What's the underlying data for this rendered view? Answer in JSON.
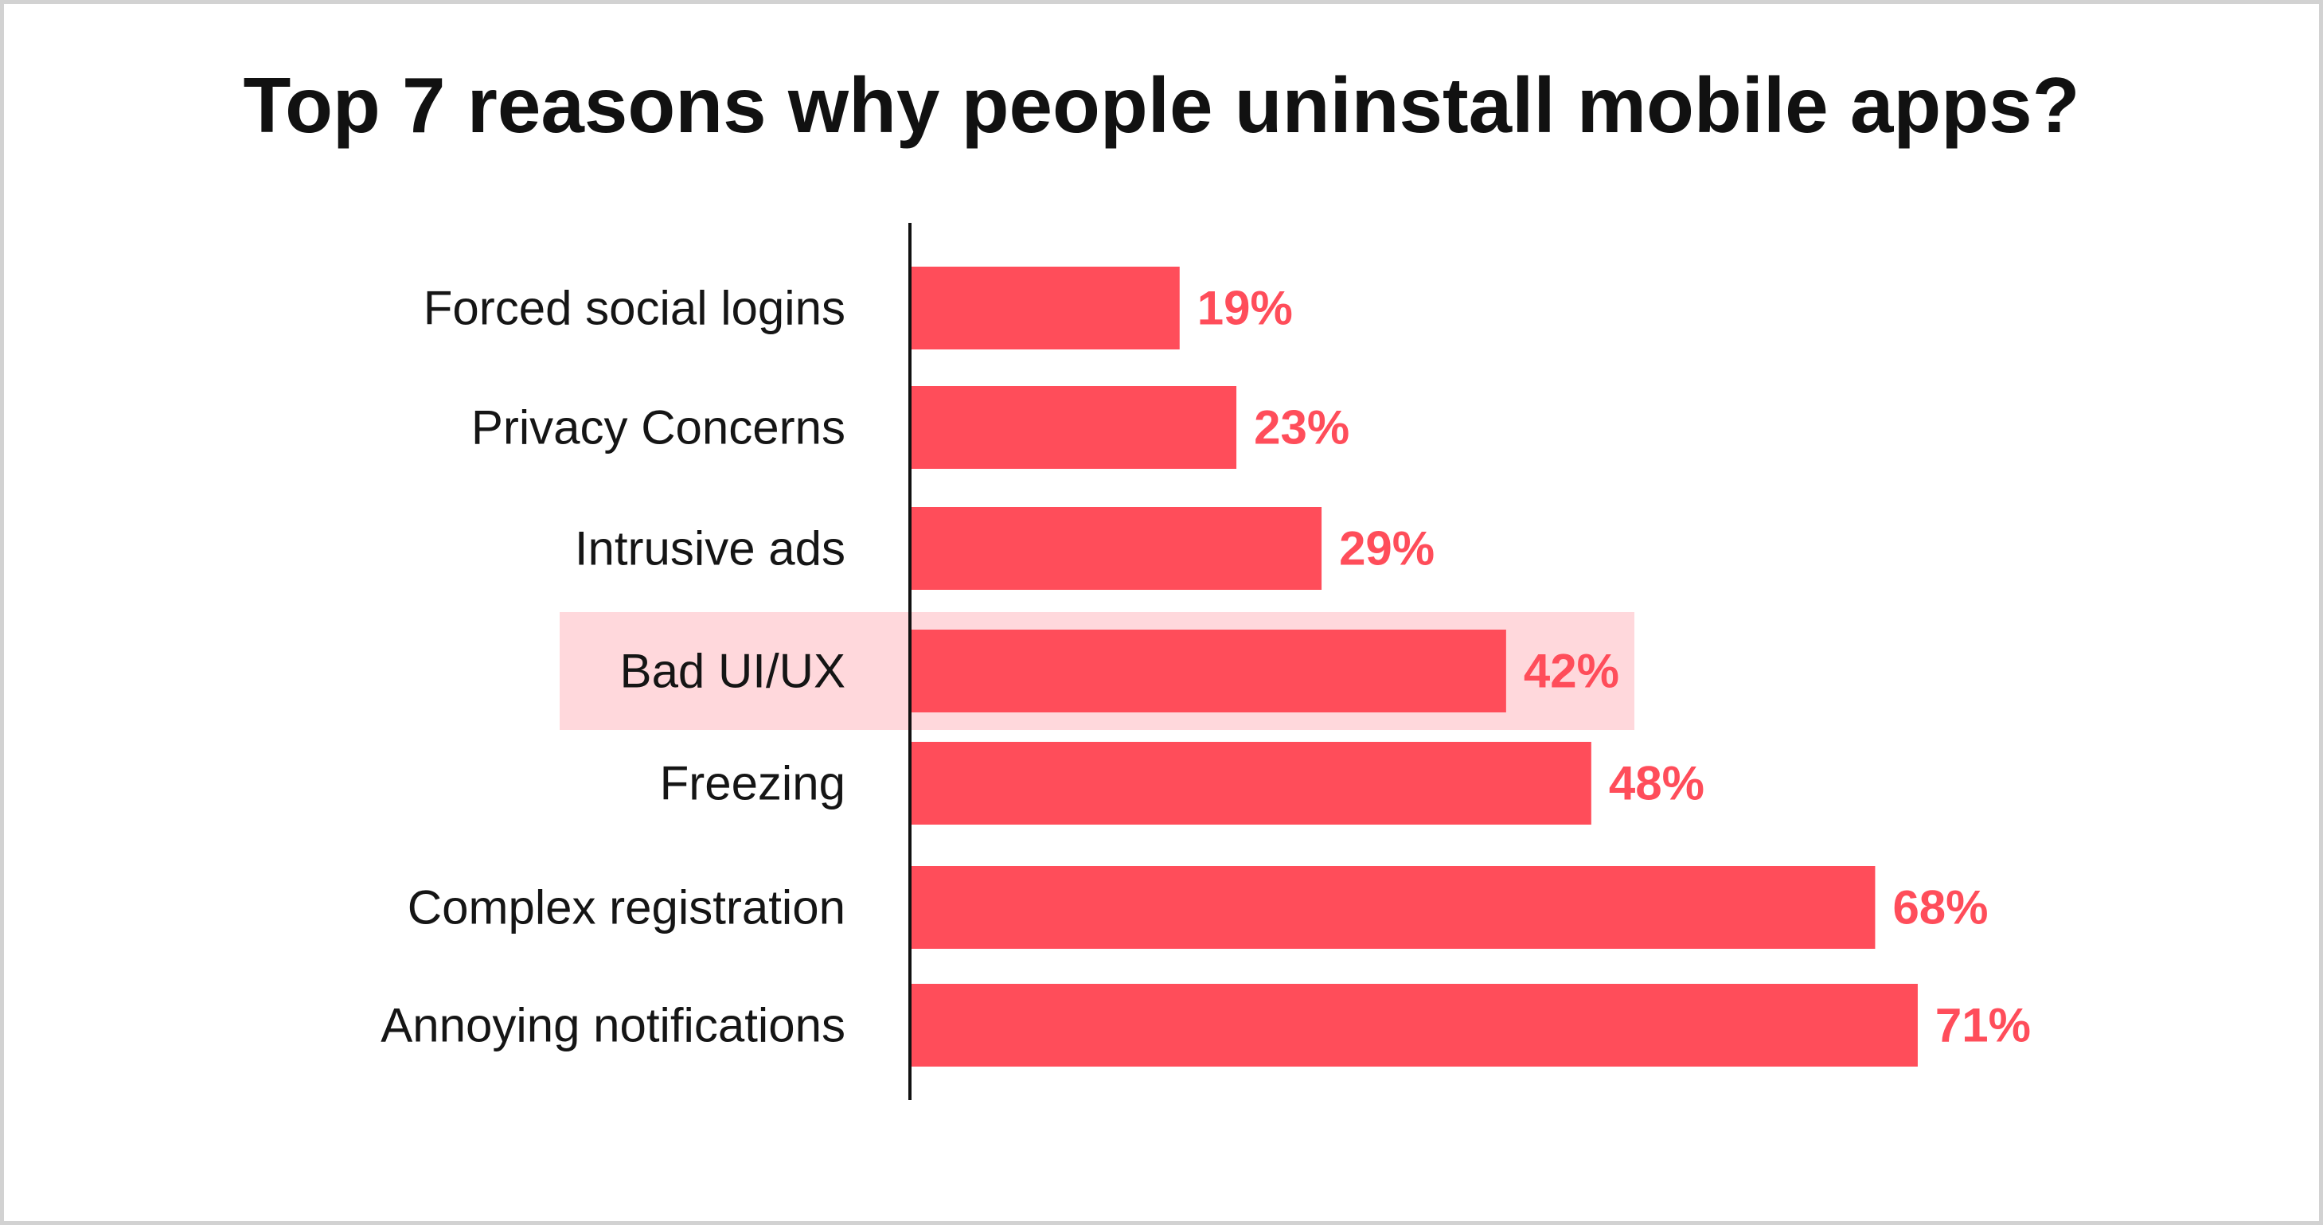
{
  "chart_data": {
    "type": "bar",
    "orientation": "horizontal",
    "title": "Top 7 reasons why people uninstall mobile apps?",
    "xlabel": "",
    "ylabel": "",
    "categories": [
      "Forced social logins",
      "Privacy Concerns",
      "Intrusive ads",
      "Bad UI/UX",
      "Freezing",
      "Complex registration",
      "Annoying notifications"
    ],
    "values": [
      19,
      23,
      29,
      42,
      48,
      68,
      71
    ],
    "value_labels": [
      "19%",
      "23%",
      "29%",
      "42%",
      "48%",
      "68%",
      "71%"
    ],
    "highlighted_category": "Bad UI/UX",
    "grid": false,
    "legend": "none"
  },
  "colors": {
    "bar": "#ff4d5a",
    "value_label": "#ff4d5a",
    "highlight": "#ffd8dc",
    "axis": "#111111",
    "text": "#151515",
    "frame": "#d2d2d2"
  }
}
